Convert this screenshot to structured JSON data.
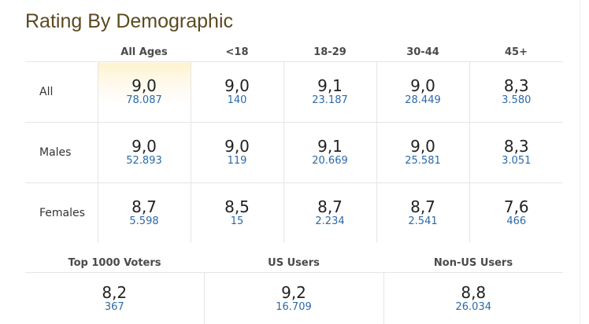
{
  "title": "Rating By Demographic",
  "columns": [
    "All Ages",
    "<18",
    "18-29",
    "30-44",
    "45+"
  ],
  "rows": [
    {
      "label": "All",
      "cells": [
        {
          "rating": "9,0",
          "votes": "78.087"
        },
        {
          "rating": "9,0",
          "votes": "140"
        },
        {
          "rating": "9,1",
          "votes": "23.187"
        },
        {
          "rating": "9,0",
          "votes": "28.449"
        },
        {
          "rating": "8,3",
          "votes": "3.580"
        }
      ]
    },
    {
      "label": "Males",
      "cells": [
        {
          "rating": "9,0",
          "votes": "52.893"
        },
        {
          "rating": "9,0",
          "votes": "119"
        },
        {
          "rating": "9,1",
          "votes": "20.669"
        },
        {
          "rating": "9,0",
          "votes": "25.581"
        },
        {
          "rating": "8,3",
          "votes": "3.051"
        }
      ]
    },
    {
      "label": "Females",
      "cells": [
        {
          "rating": "8,7",
          "votes": "5.598"
        },
        {
          "rating": "8,5",
          "votes": "15"
        },
        {
          "rating": "8,7",
          "votes": "2.234"
        },
        {
          "rating": "8,7",
          "votes": "2.541"
        },
        {
          "rating": "7,6",
          "votes": "466"
        }
      ]
    }
  ],
  "groups": [
    {
      "label": "Top 1000 Voters",
      "rating": "8,2",
      "votes": "367"
    },
    {
      "label": "US Users",
      "rating": "9,2",
      "votes": "16.709"
    },
    {
      "label": "Non-US Users",
      "rating": "8,8",
      "votes": "26.034"
    }
  ],
  "colors": {
    "title": "#5b4a20",
    "votes_link": "#2b6aa6",
    "highlight": "#fdf3cf",
    "divider": "#e6e6e6"
  }
}
